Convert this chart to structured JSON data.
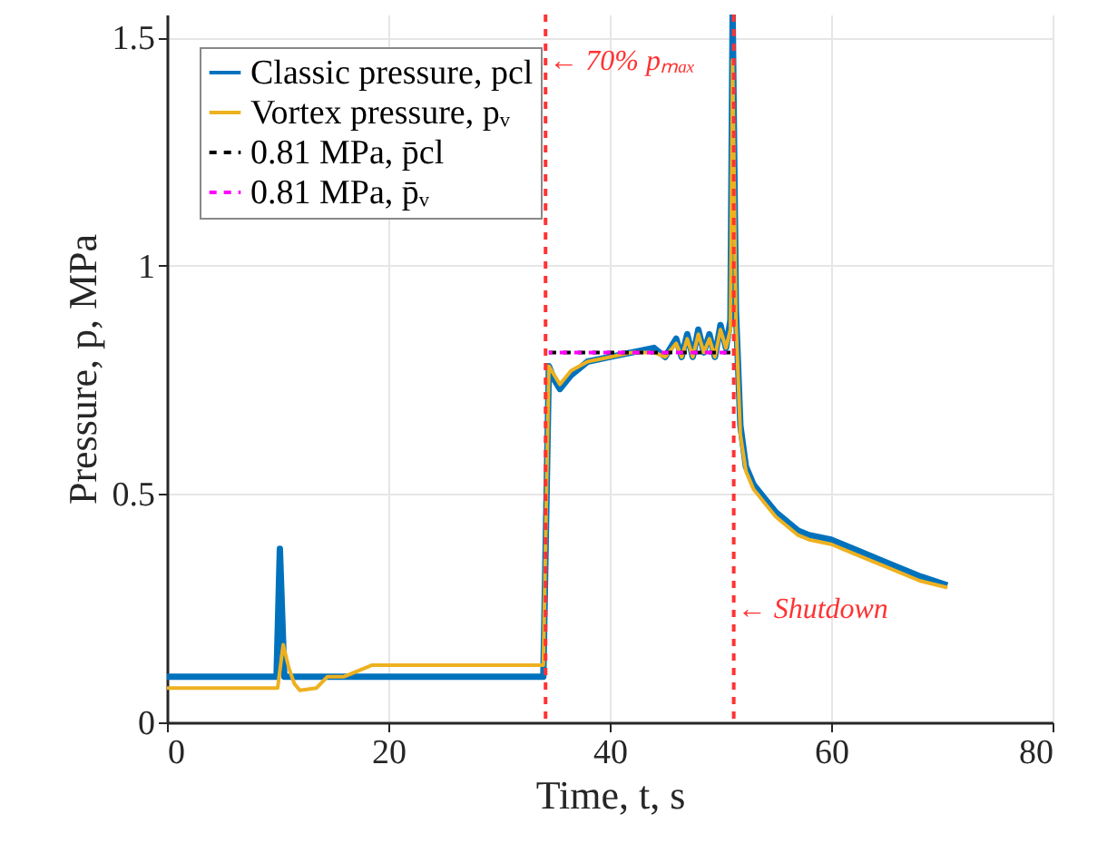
{
  "chart_data": {
    "type": "line",
    "xlabel": "Time, t, s",
    "ylabel": "Pressure, p, MPa",
    "xlim": [
      0,
      80
    ],
    "ylim": [
      0,
      1.55
    ],
    "xticks": [
      0,
      20,
      40,
      60,
      80
    ],
    "yticks": [
      0,
      0.5,
      1,
      1.5
    ],
    "grid": true,
    "legend": "top left",
    "line_style": "solid",
    "marker": "none",
    "series": [
      {
        "name": "Classic pressure, pcl",
        "color": "#0072bd",
        "x": [
          0,
          9.9,
          10.2,
          10.6,
          11,
          20,
          34,
          34.5,
          35,
          35.5,
          36.5,
          38,
          40,
          42,
          44,
          45,
          46,
          46.5,
          47,
          47.5,
          48,
          48.5,
          49,
          49.5,
          50,
          50.5,
          50.9,
          51.1,
          51.4,
          51.8,
          52.3,
          53,
          54,
          55,
          57,
          58,
          60,
          62,
          65,
          68,
          70.5
        ],
        "values": [
          0.1,
          0.1,
          0.38,
          0.1,
          0.1,
          0.1,
          0.1,
          0.78,
          0.75,
          0.73,
          0.76,
          0.79,
          0.8,
          0.81,
          0.82,
          0.8,
          0.84,
          0.8,
          0.85,
          0.8,
          0.86,
          0.81,
          0.85,
          0.8,
          0.87,
          0.82,
          0.88,
          1.55,
          0.9,
          0.65,
          0.56,
          0.52,
          0.49,
          0.46,
          0.42,
          0.41,
          0.4,
          0.38,
          0.35,
          0.32,
          0.3
        ]
      },
      {
        "name": "Vortex pressure, pᵥ",
        "color": "#edb120",
        "x": [
          0,
          10,
          10.5,
          11,
          11.5,
          12,
          13.5,
          14.5,
          16,
          18.5,
          20,
          34,
          34.5,
          35,
          35.5,
          36.5,
          38,
          40,
          42,
          44,
          45,
          46,
          46.5,
          47,
          47.5,
          48,
          48.5,
          49,
          49.5,
          50,
          50.5,
          50.9,
          51.1,
          51.4,
          51.8,
          52.3,
          53,
          54,
          55,
          57,
          58,
          60,
          62,
          65,
          68,
          70.5
        ],
        "values": [
          0.075,
          0.075,
          0.17,
          0.12,
          0.085,
          0.07,
          0.075,
          0.1,
          0.1,
          0.125,
          0.125,
          0.125,
          0.78,
          0.76,
          0.74,
          0.77,
          0.79,
          0.8,
          0.81,
          0.81,
          0.8,
          0.83,
          0.8,
          0.84,
          0.8,
          0.85,
          0.81,
          0.84,
          0.8,
          0.86,
          0.82,
          0.86,
          1.45,
          0.88,
          0.63,
          0.55,
          0.51,
          0.48,
          0.45,
          0.41,
          0.4,
          0.39,
          0.37,
          0.34,
          0.31,
          0.295
        ]
      },
      {
        "name": "0.81 MPa, p̄cl",
        "color": "#000000",
        "line_style": "dashed",
        "x": [
          34.5,
          51
        ],
        "values": [
          0.81,
          0.81
        ]
      },
      {
        "name": "0.81 MPa, p̄ᵥ",
        "color": "#ff00ff",
        "line_style": "dashed",
        "x": [
          34.5,
          51
        ],
        "values": [
          0.81,
          0.81
        ]
      }
    ],
    "ref_lines": [
      {
        "axis": "x",
        "value": 34.2,
        "label": "← 70% pₘₐₓ",
        "color": "#ff3333",
        "line_style": "dashed"
      },
      {
        "axis": "x",
        "value": 51.2,
        "label": "← Shutdown",
        "color": "#ff3333",
        "line_style": "dashed"
      }
    ]
  }
}
